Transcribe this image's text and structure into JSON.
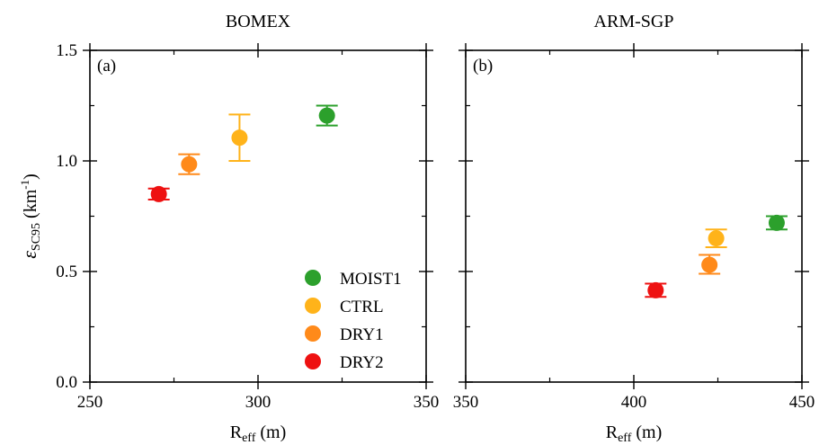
{
  "chart_data": [
    {
      "type": "scatter",
      "title": "BOMEX",
      "panel_label": "(a)",
      "xlabel": {
        "main": "R",
        "sub": "eff",
        "unit": " (m)"
      },
      "ylabel": {
        "main": "ε",
        "sub": "SC95",
        "unit_pre": " (km",
        "sup": "-1",
        "unit_post": ")"
      },
      "xlim": [
        250,
        350
      ],
      "ylim": [
        0.0,
        1.5
      ],
      "xticks": [
        250,
        300,
        350
      ],
      "xtick_labels": [
        "250",
        "300",
        "350"
      ],
      "yticks": [
        0.0,
        0.5,
        1.0,
        1.5
      ],
      "ytick_labels": [
        "0.0",
        "0.5",
        "1.0",
        "1.5"
      ],
      "series": [
        {
          "name": "MOIST1",
          "color": "#2ca02c",
          "x": 320.5,
          "y": 1.205,
          "err_low": 1.16,
          "err_high": 1.25
        },
        {
          "name": "CTRL",
          "color": "#ffb31a",
          "x": 294.5,
          "y": 1.105,
          "err_low": 1.0,
          "err_high": 1.21
        },
        {
          "name": "DRY1",
          "color": "#ff8a1a",
          "x": 279.5,
          "y": 0.985,
          "err_low": 0.94,
          "err_high": 1.03
        },
        {
          "name": "DRY2",
          "color": "#ee1111",
          "x": 270.5,
          "y": 0.85,
          "err_low": 0.825,
          "err_high": 0.875
        }
      ],
      "legend": {
        "placement": "lower-right",
        "entries": [
          "MOIST1",
          "CTRL",
          "DRY1",
          "DRY2"
        ]
      }
    },
    {
      "type": "scatter",
      "title": "ARM-SGP",
      "panel_label": "(b)",
      "xlabel": {
        "main": "R",
        "sub": "eff",
        "unit": " (m)"
      },
      "xlim": [
        350,
        450
      ],
      "ylim": [
        0.0,
        1.5
      ],
      "xticks": [
        350,
        400,
        450
      ],
      "xtick_labels": [
        "350",
        "400",
        "450"
      ],
      "yticks": [
        0.0,
        0.5,
        1.0,
        1.5
      ],
      "series": [
        {
          "name": "MOIST1",
          "color": "#2ca02c",
          "x": 442.5,
          "y": 0.72,
          "err_low": 0.69,
          "err_high": 0.75
        },
        {
          "name": "CTRL",
          "color": "#ffb31a",
          "x": 424.5,
          "y": 0.65,
          "err_low": 0.61,
          "err_high": 0.69
        },
        {
          "name": "DRY1",
          "color": "#ff8a1a",
          "x": 422.5,
          "y": 0.53,
          "err_low": 0.49,
          "err_high": 0.575
        },
        {
          "name": "DRY2",
          "color": "#ee1111",
          "x": 406.5,
          "y": 0.415,
          "err_low": 0.385,
          "err_high": 0.445
        }
      ]
    }
  ]
}
